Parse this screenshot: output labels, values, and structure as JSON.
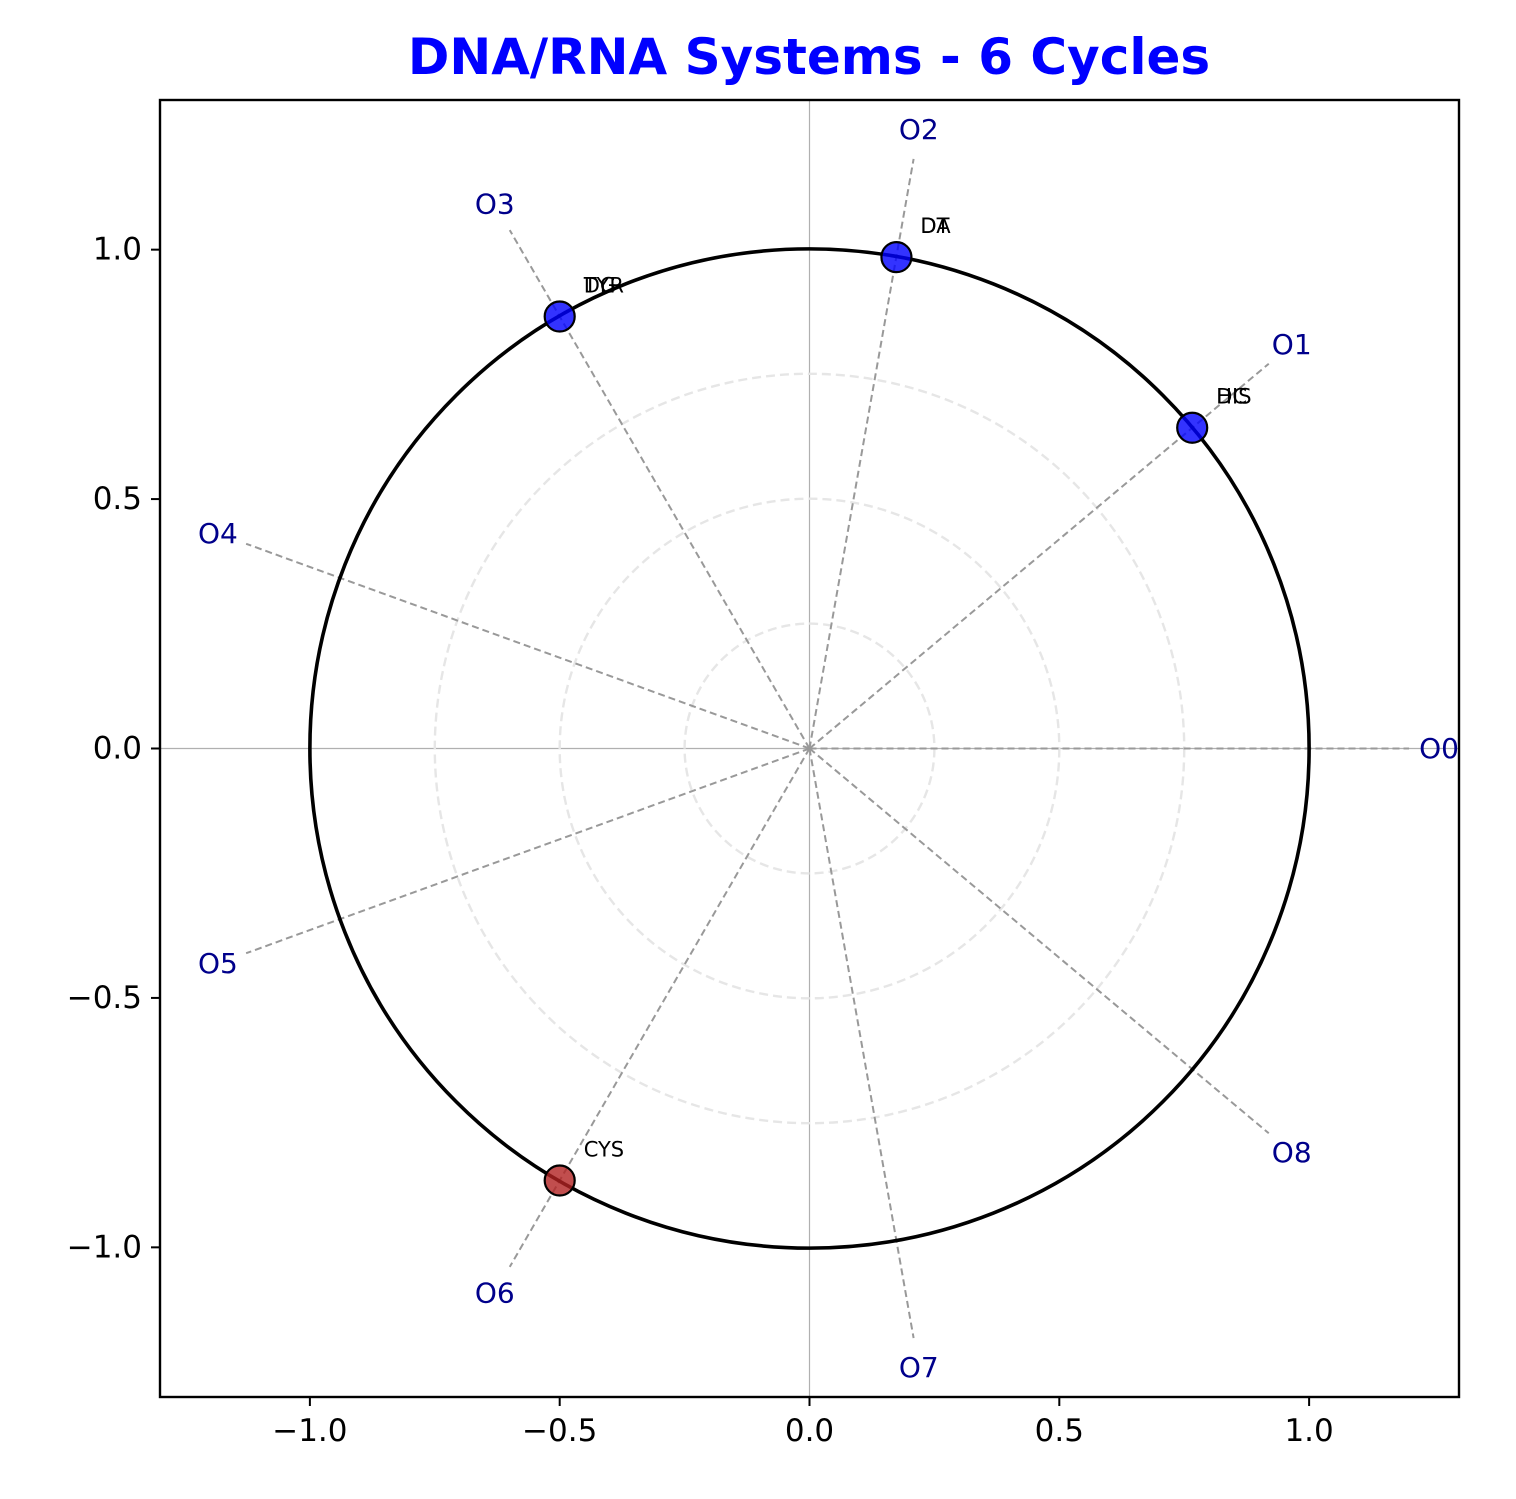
{
  "chart_data": {
    "type": "scatter",
    "title": "DNA/RNA Systems - 6 Cycles",
    "title_color": "#0000ff",
    "xlabel": "",
    "ylabel": "",
    "xlim": [
      -1.3,
      1.3
    ],
    "ylim": [
      -1.3,
      1.3
    ],
    "xticks": [
      -1.0,
      -0.5,
      0.0,
      0.5,
      1.0
    ],
    "yticks": [
      -1.0,
      -0.5,
      0.0,
      0.5,
      1.0
    ],
    "xtick_labels": [
      "−1.0",
      "−0.5",
      "0.0",
      "0.5",
      "1.0"
    ],
    "ytick_labels": [
      "−1.0",
      "−0.5",
      "0.0",
      "0.5",
      "1.0"
    ],
    "unit_circle_radius": 1.0,
    "grid_circle_radii": [
      0.25,
      0.5,
      0.75
    ],
    "spoke_color": "#999999",
    "spoke_label_color": "#00008b",
    "spokes": [
      {
        "label": "O0",
        "angle_deg": 0
      },
      {
        "label": "O1",
        "angle_deg": 40
      },
      {
        "label": "O2",
        "angle_deg": 80
      },
      {
        "label": "O3",
        "angle_deg": 120
      },
      {
        "label": "O4",
        "angle_deg": 160
      },
      {
        "label": "O5",
        "angle_deg": 200
      },
      {
        "label": "O6",
        "angle_deg": 240
      },
      {
        "label": "O7",
        "angle_deg": 280
      },
      {
        "label": "O8",
        "angle_deg": 320
      }
    ],
    "spoke_length": 1.2,
    "points": [
      {
        "x": 0.766,
        "y": 0.643,
        "labels": [
          "DC",
          "HIS"
        ],
        "color": "#0000ff"
      },
      {
        "x": 0.174,
        "y": 0.985,
        "labels": [
          "DA",
          "DT"
        ],
        "color": "#0000ff"
      },
      {
        "x": -0.5,
        "y": 0.866,
        "labels": [
          "DG",
          "TYR"
        ],
        "color": "#0000ff"
      },
      {
        "x": -0.5,
        "y": -0.866,
        "labels": [
          "CYS"
        ],
        "color": "#b22222"
      }
    ]
  }
}
